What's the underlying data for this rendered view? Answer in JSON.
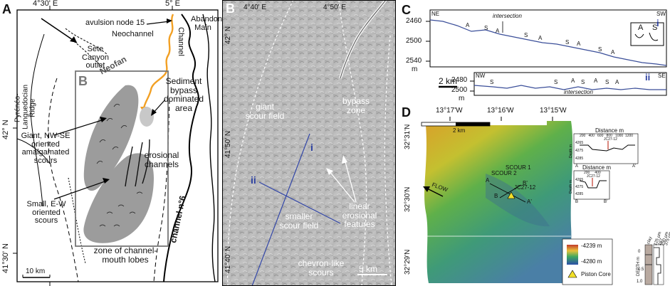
{
  "panel_a": {
    "letter": "A",
    "lon_1": "4°30' E",
    "lon_2": "5° E",
    "lat_1": "42° N",
    "lat_2": "41°30' N",
    "avulsion": "avulsion node 15",
    "neochannel": "Neochannel",
    "channel": "Channel",
    "abandoned_main": "Abandoned Main",
    "sete": "Sète Canyon outlet",
    "neofan": "Neofan",
    "box_letter": "B",
    "pyreneo": "Pyrénéo-Languedocian Ridge",
    "sediment": "Sediment bypass dominated area",
    "giant": "Giant, NW-SE oriented amalgamated scours",
    "erosional": "erosional channels",
    "small": "Small, E-W oriented scours",
    "zone": "zone of channel-mouth lobes",
    "channel6": "channel n°6",
    "scale": "10 km"
  },
  "panel_b": {
    "letter": "B",
    "lon_1": "4°40' E",
    "lon_2": "4°50' E",
    "lat_1": "42° N",
    "lat_2": "41°50' N",
    "lat_3": "41°40' N",
    "giant_scour": "giant scour field",
    "bypass": "bypass zone",
    "marker_i": "i",
    "marker_ii": "ii",
    "smaller": "smaller scour field",
    "linear": "linear erosional features",
    "chevron": "chevron-like scours",
    "scale": "5 km"
  },
  "panel_c": {
    "letter": "C",
    "ne": "NE",
    "sw": "SW",
    "nw": "NW",
    "se": "SE",
    "intersection": "intersection",
    "profile_i": "i",
    "profile_ii": "ii",
    "y_ticks_i": [
      "2460",
      "2500",
      "2540"
    ],
    "y_ticks_ii": [
      "2480",
      "2500"
    ],
    "unit": "m",
    "scale": "2 km",
    "marks_i": [
      "A",
      "S",
      "A",
      "S",
      "A",
      "S",
      "A",
      "S",
      "A"
    ],
    "marks_ii": [
      "S",
      "S",
      "A",
      "S",
      "A",
      "S",
      "A"
    ],
    "legend_a": "A",
    "legend_s": "S"
  },
  "panel_d": {
    "letter": "D",
    "lon_1": "13°17'W",
    "lon_2": "13°16'W",
    "lon_3": "13°15'W",
    "lat_1": "32°31'N",
    "lat_2": "32°30'N",
    "lat_3": "32°29'N",
    "scale": "2 km",
    "flow": "FLOW",
    "scour1": "SCOUR 1",
    "scour2": "SCOUR 2",
    "core": "JC27-12",
    "pt_a": "A",
    "pt_b": "B",
    "pt_bp": "B'",
    "pt_ap": "A'",
    "legend_max": "-4239 m",
    "legend_min": "-4280 m",
    "legend_core": "Piston Core",
    "inset1": {
      "title": "Distance m",
      "x_ticks": [
        "200",
        "400",
        "600",
        "800",
        "1000",
        "1200"
      ],
      "y_label": "Depth m",
      "y_ticks": [
        "4265",
        "4275",
        "4285"
      ],
      "core": "JC27-12",
      "a": "A",
      "ap": "A'"
    },
    "inset2": {
      "title": "Distance m",
      "x_ticks": [
        "200",
        "400"
      ],
      "y_label": "Depth m",
      "y_ticks": [
        "4265",
        "4275",
        "4285"
      ],
      "core": "JC27-12",
      "b": "B",
      "bp": "B'"
    },
    "core_log": {
      "depth_label": "DEPTH m",
      "depth_ticks": [
        "0",
        "0.5",
        "1.0"
      ],
      "grains": [
        "clay",
        "125 µm",
        "187",
        "250 µm",
        "375 µm"
      ]
    }
  },
  "colors": {
    "orange": "#f2a024",
    "gray_scours": "#9c9c9c",
    "blue_line": "#3347a8",
    "profile": "#3a4e99"
  }
}
